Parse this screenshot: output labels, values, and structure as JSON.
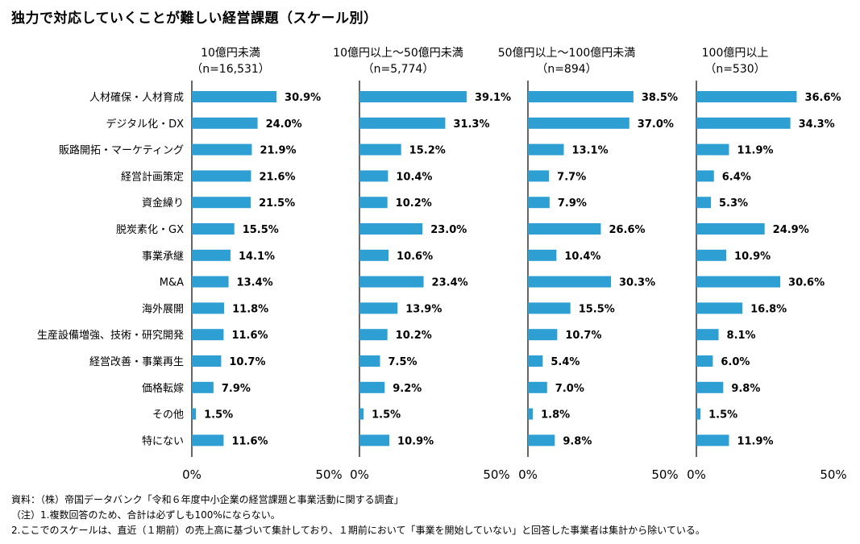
{
  "title": "独力で対応していくことが難しい経営課題（スケール別）",
  "colors": {
    "bar": "#2E9FD3",
    "axis": "#000000"
  },
  "chart_data": {
    "type": "bar",
    "orientation": "horizontal",
    "categories": [
      "人材確保・人材育成",
      "デジタル化・DX",
      "販路開拓・マーケティング",
      "経営計画策定",
      "資金繰り",
      "脱炭素化・GX",
      "事業承継",
      "M&A",
      "海外展開",
      "生産設備増強、技術・研究開発",
      "経営改善・事業再生",
      "価格転嫁",
      "その他",
      "特にない"
    ],
    "xlim": [
      0,
      50
    ],
    "tick_labels": [
      "0%",
      "50%"
    ],
    "series": [
      {
        "name": "10億円未満",
        "n": "（n=16,531）",
        "values": [
          30.9,
          24.0,
          21.9,
          21.6,
          21.5,
          15.5,
          14.1,
          13.4,
          11.8,
          11.6,
          10.7,
          7.9,
          1.5,
          11.6
        ]
      },
      {
        "name": "10億円以上～50億円未満",
        "n": "（n=5,774）",
        "values": [
          39.1,
          31.3,
          15.2,
          10.4,
          10.2,
          23.0,
          10.6,
          23.4,
          13.9,
          10.2,
          7.5,
          9.2,
          1.5,
          10.9
        ]
      },
      {
        "name": "50億円以上～100億円未満",
        "n": "（n=894）",
        "values": [
          38.5,
          37.0,
          13.1,
          7.7,
          7.9,
          26.6,
          10.4,
          30.3,
          15.5,
          10.7,
          5.4,
          7.0,
          1.8,
          9.8
        ]
      },
      {
        "name": "100億円以上",
        "n": "（n=530）",
        "values": [
          36.6,
          34.3,
          11.9,
          6.4,
          5.3,
          24.9,
          10.9,
          30.6,
          16.8,
          8.1,
          6.0,
          9.8,
          1.5,
          11.9
        ]
      }
    ]
  },
  "notes": {
    "source": "資料：（株）帝国データバンク「令和６年度中小企業の経営課題と事業活動に関する調査」",
    "note1": "（注）1.複数回答のため、合計は必ずしも100%にならない。",
    "note2": "2.ここでのスケールは、直近（１期前）の売上高に基づいて集計しており、１期前において「事業を開始していない」と回答した事業者は集計から除いている。"
  }
}
